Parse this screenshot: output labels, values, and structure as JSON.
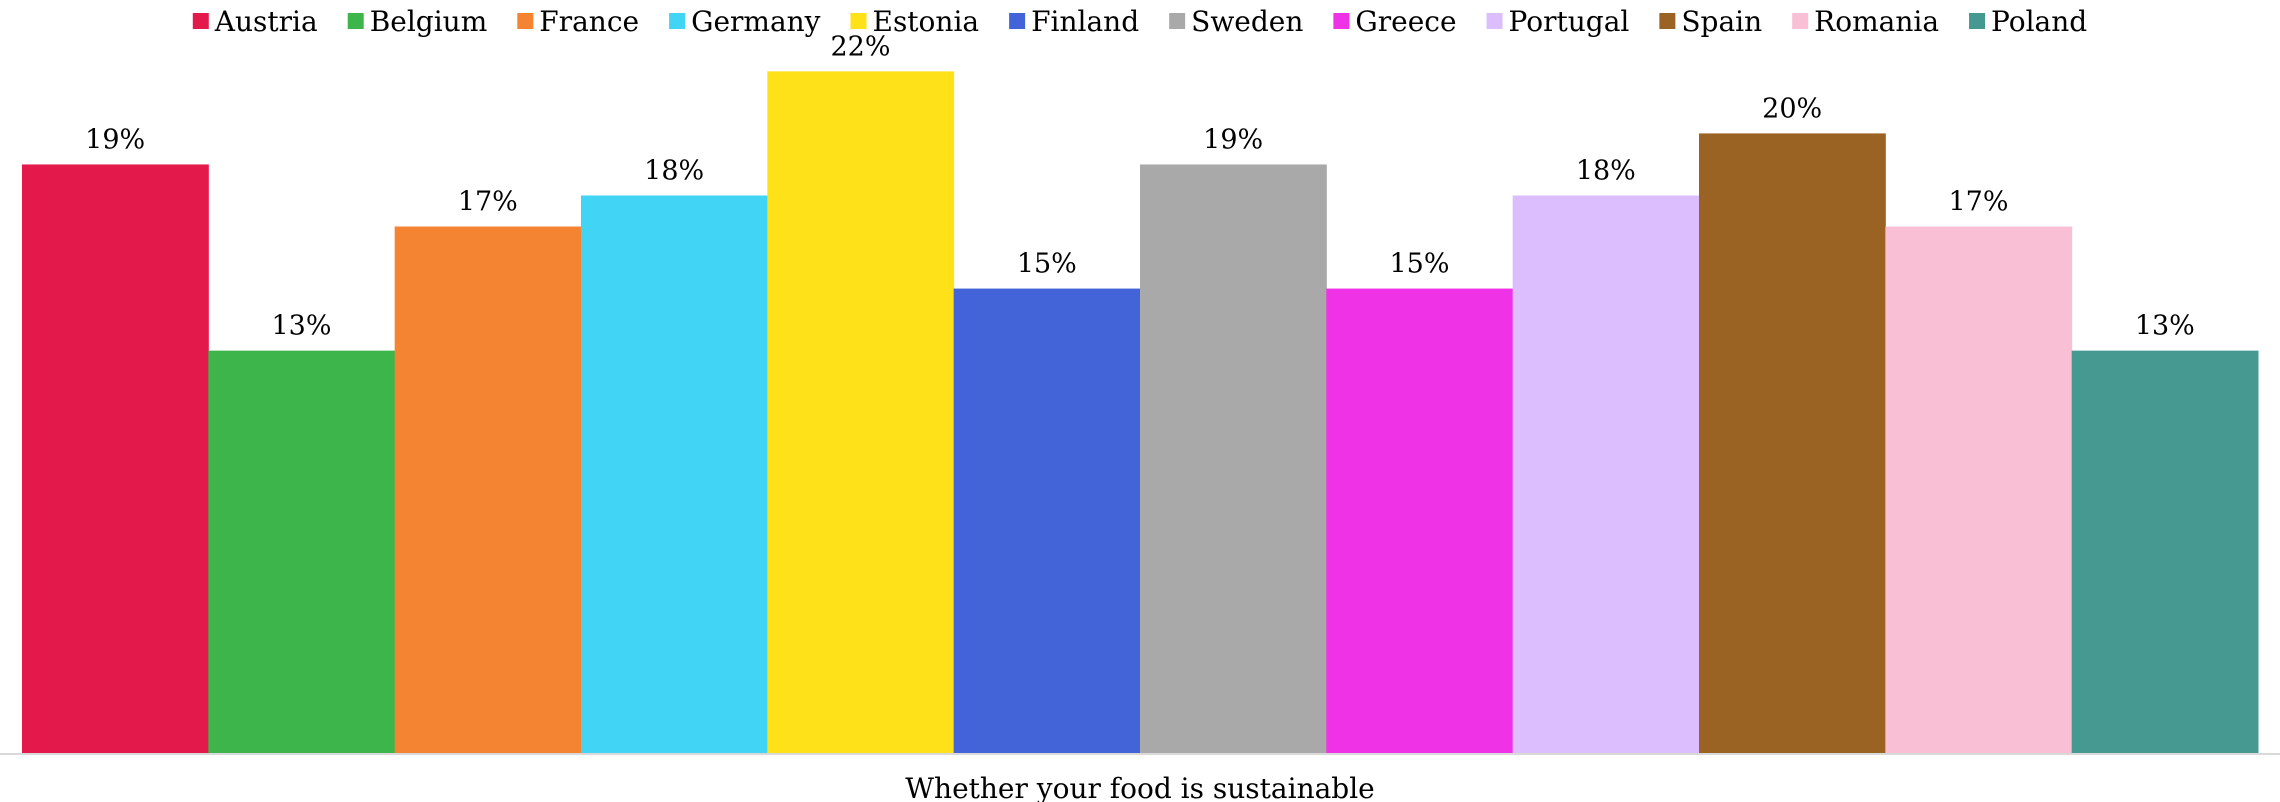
{
  "chart_data": {
    "type": "bar",
    "categories": [
      "Whether your food is sustainable"
    ],
    "xlabel": "Whether your food is sustainable",
    "ylabel": "",
    "ylim": [
      0,
      24.3
    ],
    "grid": false,
    "legend_position": "top",
    "series": [
      {
        "name": "Austria",
        "value": 19,
        "label": "19%",
        "color": "#E3194B"
      },
      {
        "name": "Belgium",
        "value": 13,
        "label": "13%",
        "color": "#3DB54A"
      },
      {
        "name": "France",
        "value": 17,
        "label": "17%",
        "color": "#F48432"
      },
      {
        "name": "Germany",
        "value": 18,
        "label": "18%",
        "color": "#42D4F4"
      },
      {
        "name": "Estonia",
        "value": 22,
        "label": "22%",
        "color": "#FFE119"
      },
      {
        "name": "Finland",
        "value": 15,
        "label": "15%",
        "color": "#4363D8"
      },
      {
        "name": "Sweden",
        "value": 19,
        "label": "19%",
        "color": "#A9A9A9"
      },
      {
        "name": "Greece",
        "value": 15,
        "label": "15%",
        "color": "#F032E6"
      },
      {
        "name": "Portugal",
        "value": 18,
        "label": "18%",
        "color": "#DCBEFF"
      },
      {
        "name": "Spain",
        "value": 20,
        "label": "20%",
        "color": "#9A6324"
      },
      {
        "name": "Romania",
        "value": 17,
        "label": "17%",
        "color": "#F8BFD5"
      },
      {
        "name": "Poland",
        "value": 13,
        "label": "13%",
        "color": "#469990"
      }
    ]
  }
}
